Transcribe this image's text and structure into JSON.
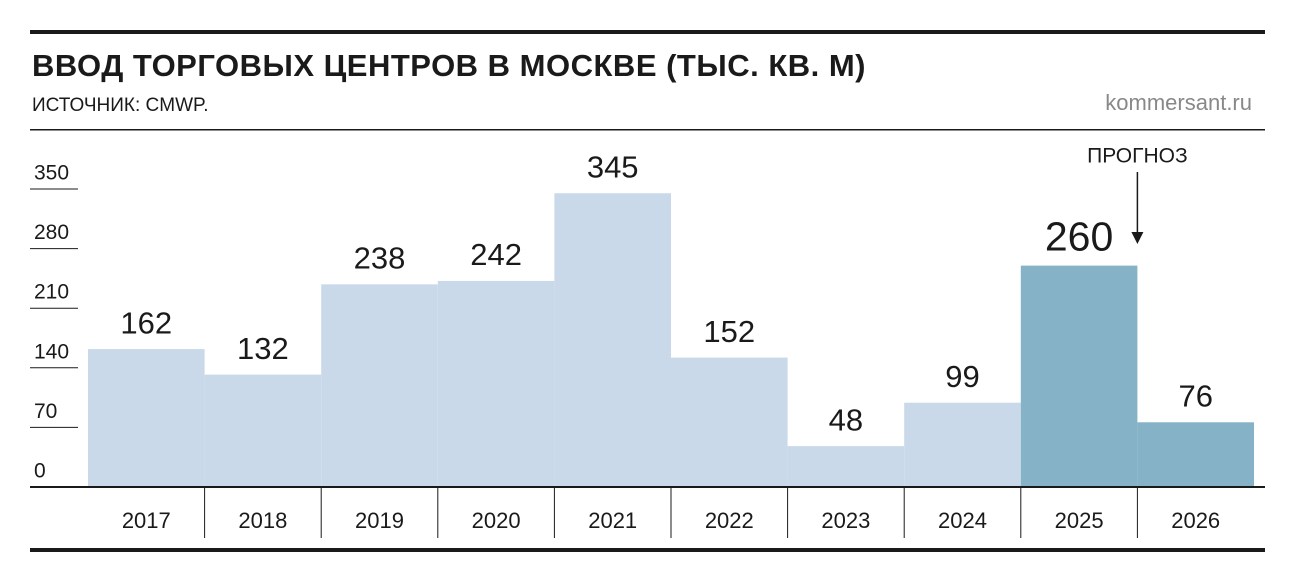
{
  "chart_data": {
    "type": "bar",
    "title": "ВВОД ТОРГОВЫХ ЦЕНТРОВ В МОСКВЕ (ТЫС. КВ. М)",
    "subtitle": "ИСТОЧНИК: CMWP.",
    "source_site": "kommersant.ru",
    "annotation": "ПРОГНОЗ",
    "categories": [
      "2017",
      "2018",
      "2019",
      "2020",
      "2021",
      "2022",
      "2023",
      "2024",
      "2025",
      "2026"
    ],
    "values": [
      162,
      132,
      238,
      242,
      345,
      152,
      48,
      99,
      260,
      76
    ],
    "colors": [
      "#c9d9ea",
      "#c9d9ea",
      "#c9d9ea",
      "#c9d9ea",
      "#c9d9ea",
      "#c9d9ea",
      "#c9d9ea",
      "#c9d9ea",
      "#86b2c7",
      "#86b2c7"
    ],
    "ylim": [
      0,
      350
    ],
    "yticks": [
      0,
      70,
      140,
      210,
      280,
      350
    ]
  }
}
